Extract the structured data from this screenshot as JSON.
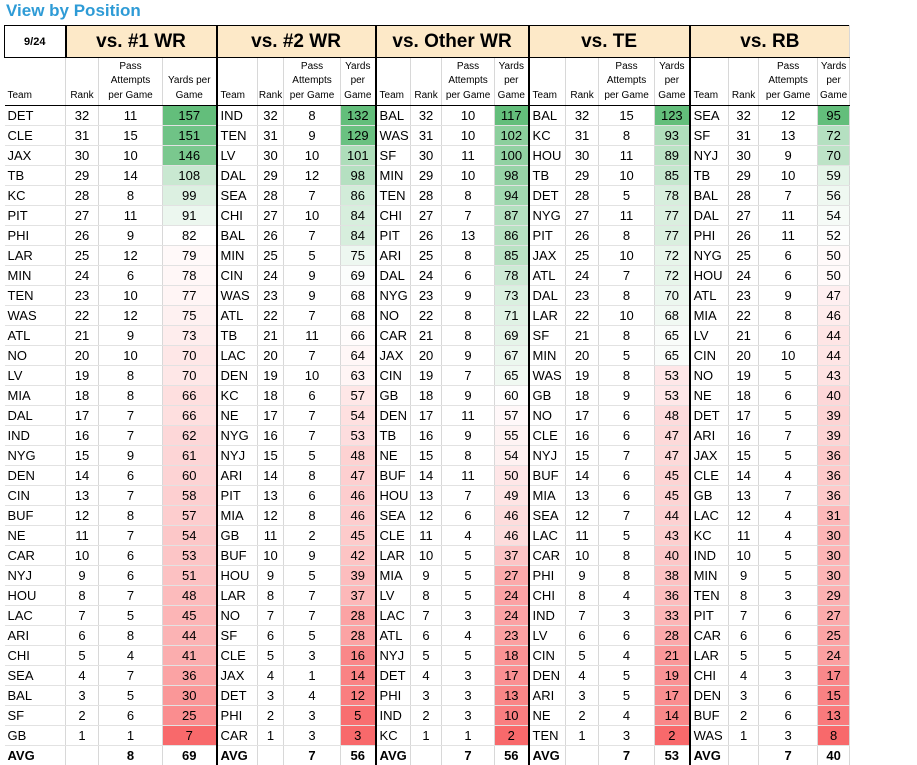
{
  "title": "View by Position",
  "date": "9/24",
  "groups": [
    "vs. #1 WR",
    "vs. #2 WR",
    "vs. Other WR",
    "vs. TE",
    "vs. RB"
  ],
  "subheaders": {
    "team": "Team",
    "rank": "Rank",
    "pass": [
      "Pass",
      "Attempts",
      "per Game"
    ],
    "yards_a": [
      "Yards per",
      "Game"
    ],
    "yards_b": [
      "Yards",
      "per",
      "Game"
    ]
  },
  "sections": [
    {
      "rows": [
        [
          "DET",
          32,
          11,
          157
        ],
        [
          "CLE",
          31,
          15,
          151
        ],
        [
          "JAX",
          30,
          10,
          146
        ],
        [
          "TB",
          29,
          14,
          108
        ],
        [
          "KC",
          28,
          8,
          99
        ],
        [
          "PIT",
          27,
          11,
          91
        ],
        [
          "PHI",
          26,
          9,
          82
        ],
        [
          "LAR",
          25,
          12,
          79
        ],
        [
          "MIN",
          24,
          6,
          78
        ],
        [
          "TEN",
          23,
          10,
          77
        ],
        [
          "WAS",
          22,
          12,
          75
        ],
        [
          "ATL",
          21,
          9,
          73
        ],
        [
          "NO",
          20,
          10,
          70
        ],
        [
          "LV",
          19,
          8,
          70
        ],
        [
          "MIA",
          18,
          8,
          66
        ],
        [
          "DAL",
          17,
          7,
          66
        ],
        [
          "IND",
          16,
          7,
          62
        ],
        [
          "NYG",
          15,
          9,
          61
        ],
        [
          "DEN",
          14,
          6,
          60
        ],
        [
          "CIN",
          13,
          7,
          58
        ],
        [
          "BUF",
          12,
          8,
          57
        ],
        [
          "NE",
          11,
          7,
          54
        ],
        [
          "CAR",
          10,
          6,
          53
        ],
        [
          "NYJ",
          9,
          6,
          51
        ],
        [
          "HOU",
          8,
          7,
          48
        ],
        [
          "LAC",
          7,
          5,
          45
        ],
        [
          "ARI",
          6,
          8,
          44
        ],
        [
          "CHI",
          5,
          4,
          41
        ],
        [
          "SEA",
          4,
          7,
          36
        ],
        [
          "BAL",
          3,
          5,
          30
        ],
        [
          "SF",
          2,
          6,
          25
        ],
        [
          "GB",
          1,
          1,
          7
        ]
      ],
      "avg": [
        "AVG",
        "",
        8,
        69
      ]
    },
    {
      "rows": [
        [
          "IND",
          32,
          8,
          132
        ],
        [
          "TEN",
          31,
          9,
          129
        ],
        [
          "LV",
          30,
          10,
          101
        ],
        [
          "DAL",
          29,
          12,
          98
        ],
        [
          "SEA",
          28,
          7,
          86
        ],
        [
          "CHI",
          27,
          10,
          84
        ],
        [
          "BAL",
          26,
          7,
          84
        ],
        [
          "MIN",
          25,
          5,
          75
        ],
        [
          "CIN",
          24,
          9,
          69
        ],
        [
          "WAS",
          23,
          9,
          68
        ],
        [
          "ATL",
          22,
          7,
          68
        ],
        [
          "TB",
          21,
          11,
          66
        ],
        [
          "LAC",
          20,
          7,
          64
        ],
        [
          "DEN",
          19,
          10,
          63
        ],
        [
          "KC",
          18,
          6,
          57
        ],
        [
          "NE",
          17,
          7,
          54
        ],
        [
          "NYG",
          16,
          7,
          53
        ],
        [
          "NYJ",
          15,
          5,
          48
        ],
        [
          "ARI",
          14,
          8,
          47
        ],
        [
          "PIT",
          13,
          6,
          46
        ],
        [
          "MIA",
          12,
          8,
          46
        ],
        [
          "GB",
          11,
          2,
          45
        ],
        [
          "BUF",
          10,
          9,
          42
        ],
        [
          "HOU",
          9,
          5,
          39
        ],
        [
          "LAR",
          8,
          7,
          37
        ],
        [
          "NO",
          7,
          7,
          28
        ],
        [
          "SF",
          6,
          5,
          28
        ],
        [
          "CLE",
          5,
          3,
          16
        ],
        [
          "JAX",
          4,
          1,
          14
        ],
        [
          "DET",
          3,
          4,
          12
        ],
        [
          "PHI",
          2,
          3,
          5
        ],
        [
          "CAR",
          1,
          3,
          3
        ]
      ],
      "avg": [
        "AVG",
        "",
        7,
        56
      ]
    },
    {
      "rows": [
        [
          "BAL",
          32,
          10,
          117
        ],
        [
          "WAS",
          31,
          10,
          102
        ],
        [
          "SF",
          30,
          11,
          100
        ],
        [
          "MIN",
          29,
          10,
          98
        ],
        [
          "TEN",
          28,
          8,
          94
        ],
        [
          "CHI",
          27,
          7,
          87
        ],
        [
          "PIT",
          26,
          13,
          86
        ],
        [
          "ARI",
          25,
          8,
          85
        ],
        [
          "DAL",
          24,
          6,
          78
        ],
        [
          "NYG",
          23,
          9,
          73
        ],
        [
          "NO",
          22,
          8,
          71
        ],
        [
          "CAR",
          21,
          8,
          69
        ],
        [
          "JAX",
          20,
          9,
          67
        ],
        [
          "CIN",
          19,
          7,
          65
        ],
        [
          "GB",
          18,
          9,
          60
        ],
        [
          "DEN",
          17,
          11,
          57
        ],
        [
          "TB",
          16,
          9,
          55
        ],
        [
          "NE",
          15,
          8,
          54
        ],
        [
          "BUF",
          14,
          11,
          50
        ],
        [
          "HOU",
          13,
          7,
          49
        ],
        [
          "SEA",
          12,
          6,
          46
        ],
        [
          "CLE",
          11,
          4,
          46
        ],
        [
          "LAR",
          10,
          5,
          37
        ],
        [
          "MIA",
          9,
          5,
          27
        ],
        [
          "LV",
          8,
          5,
          24
        ],
        [
          "LAC",
          7,
          3,
          24
        ],
        [
          "ATL",
          6,
          4,
          23
        ],
        [
          "NYJ",
          5,
          5,
          18
        ],
        [
          "DET",
          4,
          3,
          17
        ],
        [
          "PHI",
          3,
          3,
          13
        ],
        [
          "IND",
          2,
          3,
          10
        ],
        [
          "KC",
          1,
          1,
          2
        ]
      ],
      "avg": [
        "AVG",
        "",
        7,
        56
      ]
    },
    {
      "rows": [
        [
          "BAL",
          32,
          15,
          123
        ],
        [
          "KC",
          31,
          8,
          93
        ],
        [
          "HOU",
          30,
          11,
          89
        ],
        [
          "TB",
          29,
          10,
          85
        ],
        [
          "DET",
          28,
          5,
          78
        ],
        [
          "NYG",
          27,
          11,
          77
        ],
        [
          "PIT",
          26,
          8,
          77
        ],
        [
          "JAX",
          25,
          10,
          72
        ],
        [
          "ATL",
          24,
          7,
          72
        ],
        [
          "DAL",
          23,
          8,
          70
        ],
        [
          "LAR",
          22,
          10,
          68
        ],
        [
          "SF",
          21,
          8,
          65
        ],
        [
          "MIN",
          20,
          5,
          65
        ],
        [
          "WAS",
          19,
          8,
          53
        ],
        [
          "GB",
          18,
          9,
          53
        ],
        [
          "NO",
          17,
          6,
          48
        ],
        [
          "CLE",
          16,
          6,
          47
        ],
        [
          "NYJ",
          15,
          7,
          47
        ],
        [
          "BUF",
          14,
          6,
          45
        ],
        [
          "MIA",
          13,
          6,
          45
        ],
        [
          "SEA",
          12,
          7,
          44
        ],
        [
          "LAC",
          11,
          5,
          43
        ],
        [
          "CAR",
          10,
          8,
          40
        ],
        [
          "PHI",
          9,
          8,
          38
        ],
        [
          "CHI",
          8,
          4,
          36
        ],
        [
          "IND",
          7,
          3,
          33
        ],
        [
          "LV",
          6,
          6,
          28
        ],
        [
          "CIN",
          5,
          4,
          21
        ],
        [
          "DEN",
          4,
          5,
          19
        ],
        [
          "ARI",
          3,
          5,
          17
        ],
        [
          "NE",
          2,
          4,
          14
        ],
        [
          "TEN",
          1,
          3,
          2
        ]
      ],
      "avg": [
        "AVG",
        "",
        7,
        53
      ]
    },
    {
      "rows": [
        [
          "SEA",
          32,
          12,
          95
        ],
        [
          "SF",
          31,
          13,
          72
        ],
        [
          "NYJ",
          30,
          9,
          70
        ],
        [
          "TB",
          29,
          10,
          59
        ],
        [
          "BAL",
          28,
          7,
          56
        ],
        [
          "DAL",
          27,
          11,
          54
        ],
        [
          "PHI",
          26,
          11,
          52
        ],
        [
          "NYG",
          25,
          6,
          50
        ],
        [
          "HOU",
          24,
          6,
          50
        ],
        [
          "ATL",
          23,
          9,
          47
        ],
        [
          "MIA",
          22,
          8,
          46
        ],
        [
          "LV",
          21,
          6,
          44
        ],
        [
          "CIN",
          20,
          10,
          44
        ],
        [
          "NO",
          19,
          5,
          43
        ],
        [
          "NE",
          18,
          6,
          40
        ],
        [
          "DET",
          17,
          5,
          39
        ],
        [
          "ARI",
          16,
          7,
          39
        ],
        [
          "JAX",
          15,
          5,
          36
        ],
        [
          "CLE",
          14,
          4,
          36
        ],
        [
          "GB",
          13,
          7,
          36
        ],
        [
          "LAC",
          12,
          4,
          31
        ],
        [
          "KC",
          11,
          4,
          30
        ],
        [
          "IND",
          10,
          5,
          30
        ],
        [
          "MIN",
          9,
          5,
          30
        ],
        [
          "TEN",
          8,
          3,
          29
        ],
        [
          "PIT",
          7,
          6,
          27
        ],
        [
          "CAR",
          6,
          6,
          25
        ],
        [
          "LAR",
          5,
          5,
          24
        ],
        [
          "CHI",
          4,
          3,
          17
        ],
        [
          "DEN",
          3,
          6,
          15
        ],
        [
          "BUF",
          2,
          6,
          13
        ],
        [
          "WAS",
          1,
          3,
          8
        ]
      ],
      "avg": [
        "AVG",
        "",
        7,
        40
      ]
    }
  ],
  "colors": {
    "header_fill": "#fde9c8",
    "title": "#2e9bd6",
    "high": "#63be7b",
    "mid": "#ffffff",
    "low": "#f8696b"
  }
}
